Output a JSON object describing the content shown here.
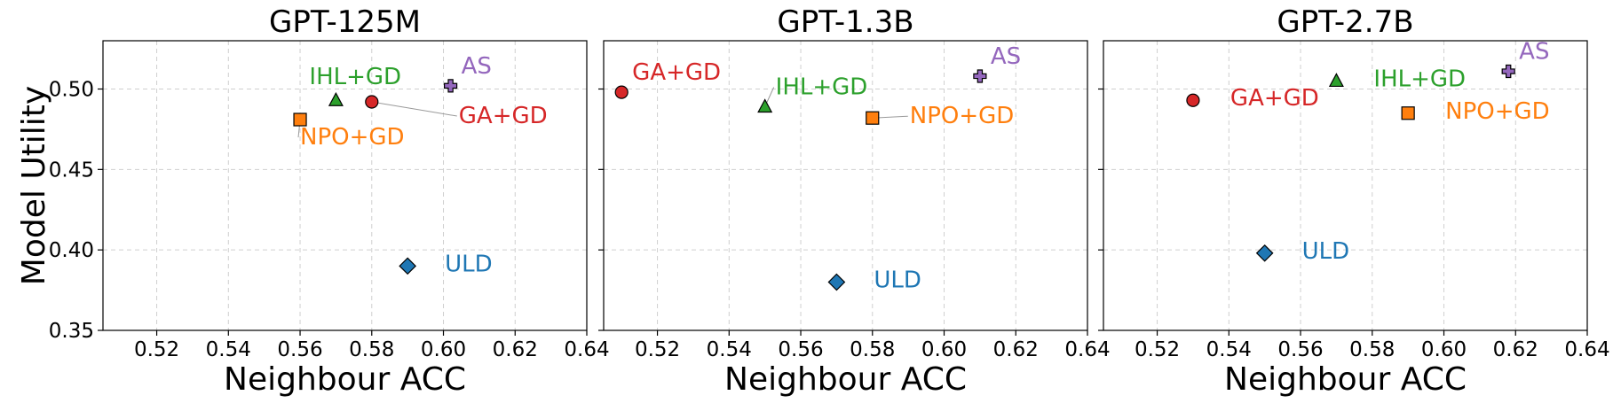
{
  "chart_data": {
    "type": "scatter",
    "ylabel": "Model Utility",
    "ylim": [
      0.35,
      0.53
    ],
    "yticks": [
      0.35,
      0.4,
      0.45,
      0.5
    ],
    "ytick_labels": [
      "0.35",
      "0.40",
      "0.45",
      "0.50"
    ],
    "xticks": [
      0.52,
      0.54,
      0.56,
      0.58,
      0.6,
      0.62,
      0.64
    ],
    "xtick_labels": [
      "0.52",
      "0.54",
      "0.56",
      "0.58",
      "0.60",
      "0.62",
      "0.64"
    ],
    "grid": true,
    "methods": {
      "GA+GD": {
        "color": "#d62728",
        "marker": "circle"
      },
      "NPO+GD": {
        "color": "#ff7f0e",
        "marker": "square"
      },
      "IHL+GD": {
        "color": "#2ca02c",
        "marker": "triangle"
      },
      "AS": {
        "color": "#9467bd",
        "marker": "plus"
      },
      "ULD": {
        "color": "#1f77b4",
        "marker": "diamond"
      }
    },
    "panels": [
      {
        "title": "GPT-125M",
        "xlabel": "Neighbour ACC",
        "xlim": [
          0.505,
          0.64
        ],
        "points": [
          {
            "method": "IHL+GD",
            "x": 0.57,
            "y": 0.493,
            "label_pos": "upper-left"
          },
          {
            "method": "GA+GD",
            "x": 0.58,
            "y": 0.492,
            "label_pos": "lower-right",
            "leader": true
          },
          {
            "method": "AS",
            "x": 0.602,
            "y": 0.502,
            "label_pos": "upper-right"
          },
          {
            "method": "NPO+GD",
            "x": 0.56,
            "y": 0.481,
            "label_pos": "below",
            "leader": true
          },
          {
            "method": "ULD",
            "x": 0.59,
            "y": 0.39,
            "label_pos": "right"
          }
        ]
      },
      {
        "title": "GPT-1.3B",
        "xlabel": "Neighbour ACC",
        "xlim": [
          0.505,
          0.64
        ],
        "points": [
          {
            "method": "GA+GD",
            "x": 0.51,
            "y": 0.498,
            "label_pos": "upper-right"
          },
          {
            "method": "IHL+GD",
            "x": 0.55,
            "y": 0.489,
            "label_pos": "upper-right",
            "leader": true
          },
          {
            "method": "AS",
            "x": 0.61,
            "y": 0.508,
            "label_pos": "upper-right"
          },
          {
            "method": "NPO+GD",
            "x": 0.58,
            "y": 0.482,
            "label_pos": "right",
            "leader": true
          },
          {
            "method": "ULD",
            "x": 0.57,
            "y": 0.38,
            "label_pos": "right"
          }
        ]
      },
      {
        "title": "GPT-2.7B",
        "xlabel": "Neighbour ACC",
        "xlim": [
          0.505,
          0.64
        ],
        "points": [
          {
            "method": "GA+GD",
            "x": 0.53,
            "y": 0.493,
            "label_pos": "right"
          },
          {
            "method": "IHL+GD",
            "x": 0.57,
            "y": 0.505,
            "label_pos": "right"
          },
          {
            "method": "AS",
            "x": 0.618,
            "y": 0.511,
            "label_pos": "upper-right"
          },
          {
            "method": "NPO+GD",
            "x": 0.59,
            "y": 0.485,
            "label_pos": "right"
          },
          {
            "method": "ULD",
            "x": 0.55,
            "y": 0.398,
            "label_pos": "right"
          }
        ]
      }
    ]
  }
}
